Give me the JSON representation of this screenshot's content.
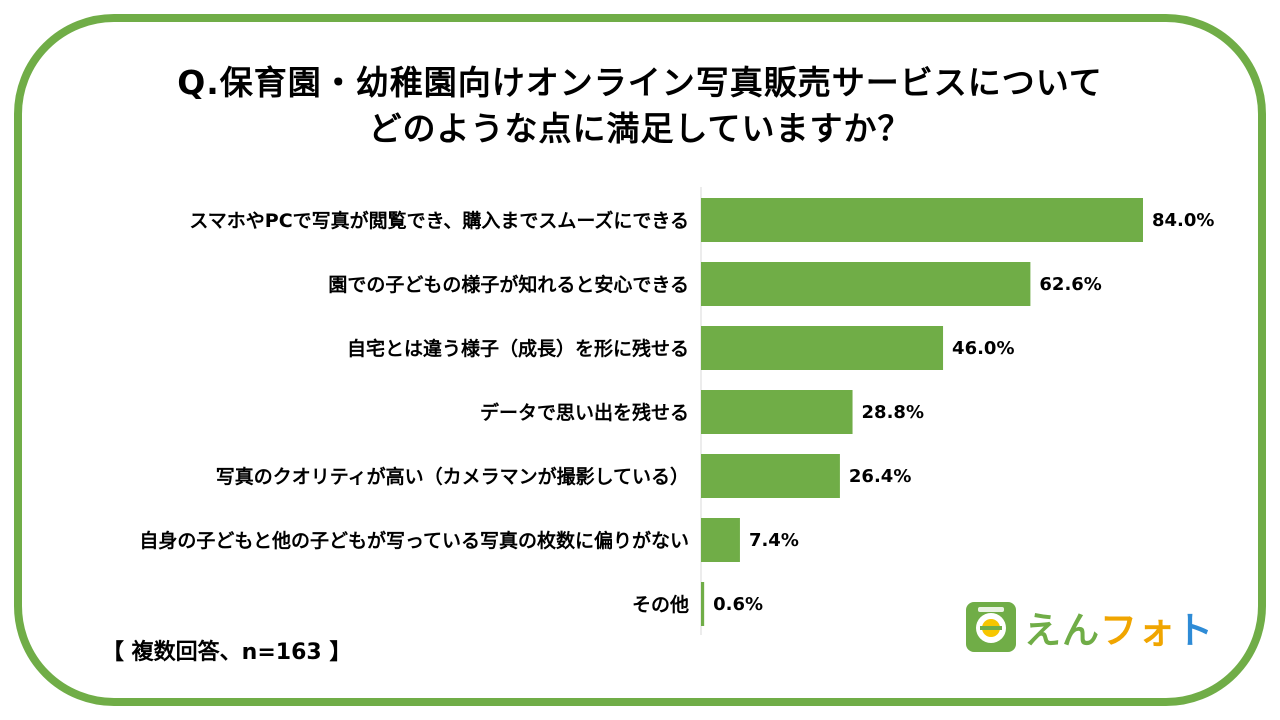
{
  "title": {
    "line1": "Q.保育園・幼稚園向けオンライン写真販売サービスについて",
    "line2": "どのような点に満足していますか？"
  },
  "note": "【 複数回答、n=163 】",
  "logo": {
    "text_part1": "えん",
    "text_part2": "フォ",
    "text_part3": "ト",
    "mark_icon": "e-leaf-logo-icon"
  },
  "colors": {
    "bar": "#70ad47",
    "frame": "#70ad47",
    "axis": "#d9d9d9"
  },
  "chart_data": {
    "type": "bar",
    "orientation": "horizontal",
    "categories": [
      "スマホやPCで写真が閲覧でき、購入までスムーズにできる",
      "園での子どもの様子が知れると安心できる",
      "自宅とは違う様子（成長）を形に残せる",
      "データで思い出を残せる",
      "写真のクオリティが高い（カメラマンが撮影している）",
      "自身の子どもと他の子どもが写っている写真の枚数に偏りがない",
      "その他"
    ],
    "values": [
      84.0,
      62.6,
      46.0,
      28.8,
      26.4,
      7.4,
      0.6
    ],
    "value_labels": [
      "84.0%",
      "62.6%",
      "46.0%",
      "28.8%",
      "26.4%",
      "7.4%",
      "0.6%"
    ],
    "title": "Q.保育園・幼稚園向けオンライン写真販売サービスについて どのような点に満足していますか？",
    "xlim": [
      0,
      84
    ],
    "grid": false,
    "legend": "none"
  }
}
